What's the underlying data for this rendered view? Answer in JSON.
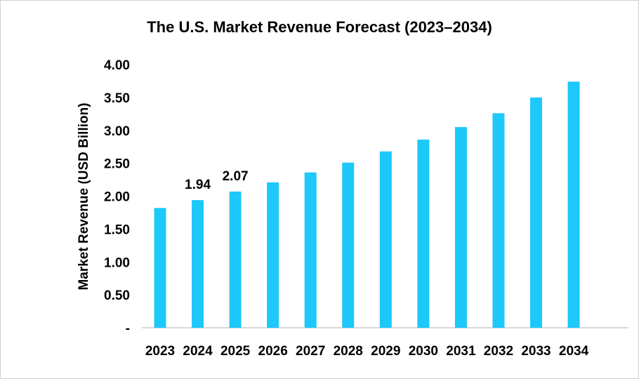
{
  "chart_data": {
    "type": "bar",
    "title": "The U.S. Market Revenue Forecast (2023–2034)",
    "xlabel": "",
    "ylabel": "Market Revenue (USD Billion)",
    "ylim": [
      0,
      4
    ],
    "yticks": [
      "-",
      "0.50",
      "1.00",
      "1.50",
      "2.00",
      "2.50",
      "3.00",
      "3.50",
      "4.00"
    ],
    "categories": [
      "2023",
      "2024",
      "2025",
      "2026",
      "2027",
      "2028",
      "2029",
      "2030",
      "2031",
      "2032",
      "2033",
      "2034"
    ],
    "values": [
      1.82,
      1.94,
      2.07,
      2.21,
      2.36,
      2.51,
      2.68,
      2.86,
      3.05,
      3.26,
      3.5,
      3.74
    ],
    "data_labels": {
      "1": "1.94",
      "2": "2.07"
    },
    "grid": false,
    "legend": "none",
    "bar_color": "#1DC8FB",
    "axis_color": "#D9D9D9"
  }
}
